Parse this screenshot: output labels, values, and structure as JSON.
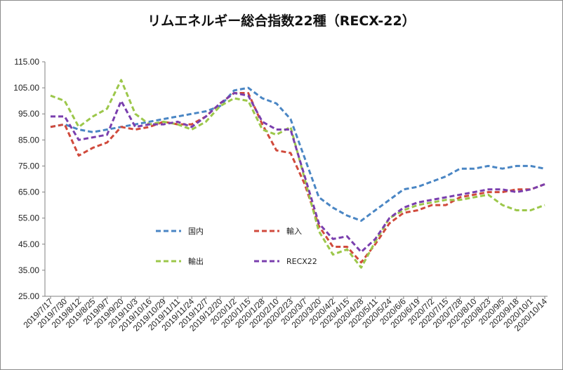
{
  "chart_data": {
    "type": "line",
    "title": "リムエネルギー総合指数22種（RECX-22）",
    "xlabel": "",
    "ylabel": "",
    "ylim": [
      25,
      115
    ],
    "yticks": [
      "25.00",
      "35.00",
      "45.00",
      "55.00",
      "65.00",
      "75.00",
      "85.00",
      "95.00",
      "105.00",
      "115.00"
    ],
    "legend_placement": "inside-lower-center",
    "grid": false,
    "x_tick_labels": [
      "2019/7/17",
      "2019/7/30",
      "2019/8/12",
      "2019/8/25",
      "2019/9/7",
      "2019/9/20",
      "2019/10/3",
      "2019/10/16",
      "2019/10/29",
      "2019/11/11",
      "2019/11/24",
      "2019/12/7",
      "2019/12/20",
      "2020/1/2",
      "2020/1/15",
      "2020/1/28",
      "2020/2/10",
      "2020/2/23",
      "2020/3/7",
      "2020/3/20",
      "2020/4/2",
      "2020/4/15",
      "2020/4/28",
      "2020/5/11",
      "2020/5/24",
      "2020/6/6",
      "2020/6/19",
      "2020/7/2",
      "2020/7/15",
      "2020/7/28",
      "2020/8/10",
      "2020/8/23",
      "2020/9/5",
      "2020/9/18",
      "2020/10/1",
      "2020/10/14"
    ],
    "series": [
      {
        "name": "国内",
        "color": "#4a86c4",
        "values": [
          90,
          91,
          89,
          88,
          89,
          90,
          91,
          92,
          93,
          94,
          95,
          96,
          98,
          104,
          105,
          101,
          99,
          93,
          78,
          63,
          59,
          56,
          54,
          58,
          62,
          66,
          67,
          69,
          71,
          74,
          74,
          75,
          74,
          75,
          75,
          74
        ]
      },
      {
        "name": "輸入",
        "color": "#d04a3c",
        "values": [
          90,
          91,
          79,
          82,
          84,
          90,
          89,
          90,
          92,
          91,
          91,
          94,
          99,
          103,
          103,
          91,
          81,
          80,
          68,
          52,
          44,
          44,
          38,
          45,
          53,
          57,
          58,
          60,
          60,
          63,
          64,
          65,
          65,
          66,
          66,
          68
        ]
      },
      {
        "name": "輸出",
        "color": "#9cc74a",
        "values": [
          102,
          100,
          90,
          94,
          97,
          108,
          95,
          91,
          92,
          91,
          89,
          92,
          98,
          101,
          100,
          89,
          87,
          90,
          70,
          50,
          41,
          43,
          36,
          46,
          55,
          58,
          60,
          61,
          62,
          62,
          63,
          64,
          60,
          58,
          58,
          60
        ]
      },
      {
        "name": "RECX22",
        "color": "#7a3fae",
        "values": [
          94,
          94,
          85,
          86,
          87,
          100,
          90,
          91,
          91,
          92,
          90,
          94,
          99,
          103,
          102,
          92,
          89,
          89,
          71,
          53,
          47,
          48,
          42,
          47,
          55,
          59,
          61,
          62,
          63,
          64,
          65,
          66,
          66,
          65,
          66,
          68
        ]
      }
    ]
  }
}
